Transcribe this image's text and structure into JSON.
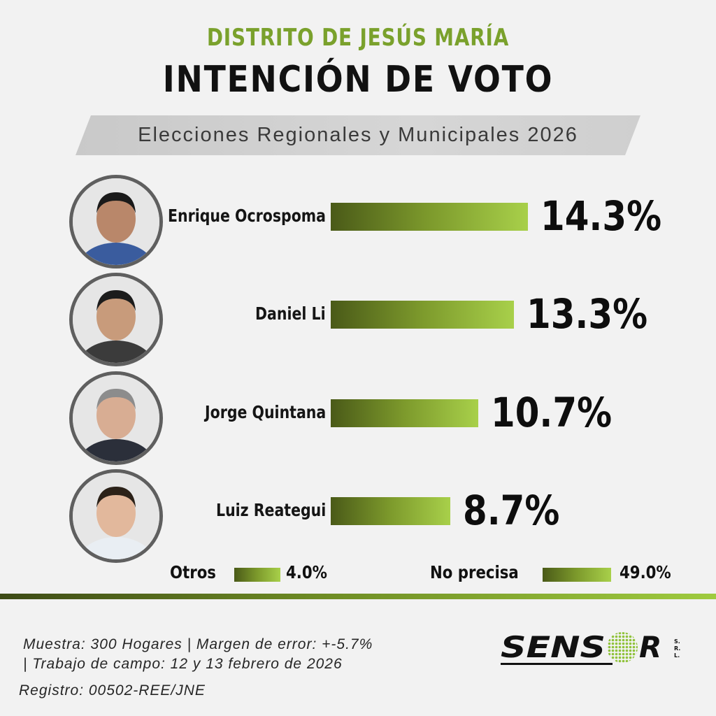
{
  "header": {
    "pretitle": "DISTRITO DE JESÚS MARÍA",
    "title": "INTENCIÓN DE VOTO",
    "subtitle": "Elecciones Regionales y Municipales 2026"
  },
  "chart_data": {
    "type": "bar",
    "orientation": "horizontal",
    "title": "INTENCIÓN DE VOTO",
    "categories": [
      "Enrique Ocrospoma",
      "Daniel Li",
      "Jorge Quintana",
      "Luiz Reategui"
    ],
    "values": [
      14.3,
      13.3,
      10.7,
      8.7
    ],
    "value_labels": [
      "14.3%",
      "13.3%",
      "10.7%",
      "8.7%"
    ],
    "extra": [
      {
        "label": "Otros",
        "value": 4.0,
        "value_label": "4.0%"
      },
      {
        "label": "No precisa",
        "value": 49.0,
        "value_label": "49.0%"
      }
    ],
    "unit": "%",
    "grid": false,
    "colors": {
      "bar_dark": "#4a5a18",
      "bar_light": "#a8d04a",
      "accent": "#7aa12c"
    }
  },
  "candidates": [
    {
      "name": "Enrique Ocrospoma",
      "pct": "14.3%",
      "photo_icon": "candidate-photo"
    },
    {
      "name": "Daniel Li",
      "pct": "13.3%",
      "photo_icon": "candidate-photo"
    },
    {
      "name": "Jorge Quintana",
      "pct": "10.7%",
      "photo_icon": "candidate-photo"
    },
    {
      "name": "Luiz Reategui",
      "pct": "8.7%",
      "photo_icon": "candidate-photo"
    }
  ],
  "others": {
    "label": "Otros",
    "pct": "4.0%"
  },
  "undecided": {
    "label": "No precisa",
    "pct": "49.0%"
  },
  "footer": {
    "line1": "Muestra: 300 Hogares | Margen de error: +-5.7%",
    "line2": "| Trabajo de campo: 12 y 13 febrero de 2026",
    "line3": "Registro: 00502-REE/JNE",
    "logo_text": "SENSOR",
    "logo_suffix": "S.R.L."
  }
}
